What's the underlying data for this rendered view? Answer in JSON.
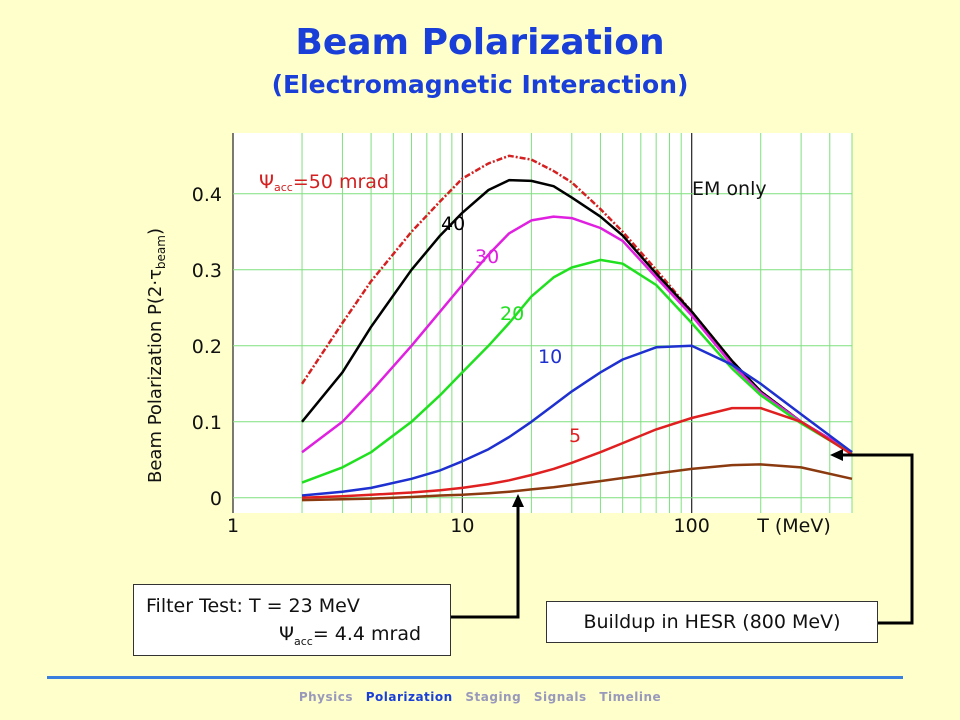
{
  "title": "Beam Polarization",
  "subtitle": "(Electromagnetic Interaction)",
  "chart_data": {
    "type": "line",
    "xscale": "log",
    "xlim": [
      1,
      500
    ],
    "ylim": [
      -0.02,
      0.48
    ],
    "xticks": [
      "1",
      "10",
      "100"
    ],
    "yticks": [
      "0",
      "0.1",
      "0.2",
      "0.3",
      "0.4"
    ],
    "xlabel": "T (MeV)",
    "ylabel_main": "Beam Polarization P(2·τ",
    "ylabel_sub": "beam",
    "ylabel_close": ")",
    "grid": true,
    "series": [
      {
        "name": "Ψacc=50 mrad",
        "label_main": "Ψ",
        "label_sub": "acc",
        "label_rest": "=50 mrad",
        "color": "#d42020",
        "dashed": true,
        "x": [
          2,
          3,
          4,
          6,
          8,
          10,
          13,
          16,
          20,
          25,
          30,
          40,
          50,
          70,
          100,
          150,
          200,
          300,
          500
        ],
        "y": [
          0.15,
          0.23,
          0.285,
          0.35,
          0.39,
          0.42,
          0.44,
          0.45,
          0.445,
          0.43,
          0.415,
          0.38,
          0.35,
          0.3,
          0.245,
          0.18,
          0.14,
          0.1,
          0.06
        ]
      },
      {
        "name": "40",
        "label": "40",
        "color": "#000000",
        "dashed": false,
        "x": [
          2,
          3,
          4,
          6,
          8,
          10,
          13,
          16,
          20,
          25,
          30,
          40,
          50,
          70,
          100,
          150,
          200,
          300,
          500
        ],
        "y": [
          0.1,
          0.165,
          0.225,
          0.3,
          0.345,
          0.375,
          0.405,
          0.418,
          0.417,
          0.41,
          0.395,
          0.37,
          0.345,
          0.295,
          0.245,
          0.18,
          0.14,
          0.1,
          0.06
        ]
      },
      {
        "name": "30",
        "label": "30",
        "color": "#e020e0",
        "dashed": false,
        "x": [
          2,
          3,
          4,
          6,
          8,
          10,
          13,
          16,
          20,
          25,
          30,
          40,
          50,
          70,
          100,
          150,
          200,
          300,
          500
        ],
        "y": [
          0.06,
          0.1,
          0.14,
          0.2,
          0.245,
          0.28,
          0.32,
          0.348,
          0.365,
          0.37,
          0.368,
          0.355,
          0.338,
          0.29,
          0.24,
          0.175,
          0.138,
          0.1,
          0.06
        ]
      },
      {
        "name": "20",
        "label": "20",
        "color": "#20e020",
        "dashed": false,
        "x": [
          2,
          3,
          4,
          6,
          8,
          10,
          13,
          16,
          20,
          25,
          30,
          40,
          50,
          70,
          100,
          150,
          200,
          300,
          500
        ],
        "y": [
          0.02,
          0.04,
          0.06,
          0.1,
          0.135,
          0.165,
          0.2,
          0.23,
          0.265,
          0.29,
          0.303,
          0.313,
          0.308,
          0.28,
          0.23,
          0.17,
          0.135,
          0.098,
          0.058
        ]
      },
      {
        "name": "10",
        "label": "10",
        "color": "#1e30d0",
        "dashed": false,
        "x": [
          2,
          3,
          4,
          6,
          8,
          10,
          13,
          16,
          20,
          25,
          30,
          40,
          50,
          70,
          100,
          150,
          200,
          300,
          500
        ],
        "y": [
          0.003,
          0.008,
          0.013,
          0.025,
          0.036,
          0.048,
          0.064,
          0.08,
          0.1,
          0.122,
          0.14,
          0.165,
          0.182,
          0.198,
          0.2,
          0.175,
          0.15,
          0.11,
          0.06
        ]
      },
      {
        "name": "5",
        "label": "5",
        "color": "#e02020",
        "dashed": false,
        "x": [
          2,
          3,
          4,
          6,
          8,
          10,
          13,
          16,
          20,
          25,
          30,
          40,
          50,
          70,
          100,
          150,
          200,
          300,
          500
        ],
        "y": [
          0.0,
          0.002,
          0.004,
          0.007,
          0.01,
          0.013,
          0.018,
          0.023,
          0.03,
          0.038,
          0.046,
          0.06,
          0.072,
          0.09,
          0.105,
          0.118,
          0.118,
          0.1,
          0.057
        ]
      },
      {
        "name": "EM only",
        "label": "EM only",
        "color": "#8b3a10",
        "dashed": false,
        "x": [
          2,
          3,
          4,
          6,
          8,
          10,
          13,
          16,
          20,
          25,
          30,
          40,
          50,
          70,
          100,
          150,
          200,
          300,
          500
        ],
        "y": [
          -0.003,
          -0.002,
          -0.001,
          0.001,
          0.003,
          0.004,
          0.006,
          0.008,
          0.011,
          0.014,
          0.017,
          0.022,
          0.026,
          0.032,
          0.038,
          0.043,
          0.044,
          0.04,
          0.025
        ]
      }
    ]
  },
  "annotations": {
    "filter_line1": "Filter Test:  T = 23 MeV",
    "filter_line2_main": "Ψ",
    "filter_line2_sub": "acc",
    "filter_line2_rest": "= 4.4 mrad",
    "hesr": "Buildup in HESR (800 MeV)",
    "arrow_color": "#000000"
  },
  "footer": {
    "items": [
      "Physics",
      "Polarization",
      "Staging",
      "Signals",
      "Timeline"
    ],
    "active": "Polarization"
  }
}
